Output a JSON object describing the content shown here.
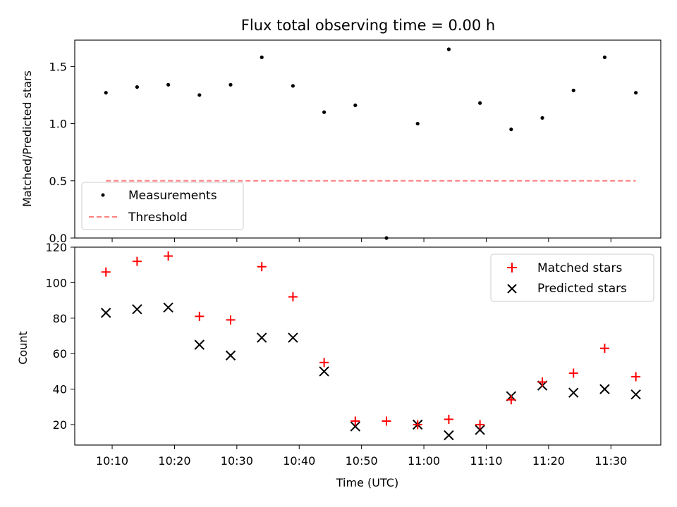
{
  "title": "Flux total observing time = 0.00 h",
  "chart_data": [
    {
      "type": "scatter",
      "ylabel": "Matched/Predicted stars",
      "ylim": [
        0,
        1.73
      ],
      "yticks": [
        0.0,
        0.5,
        1.0,
        1.5
      ],
      "ytick_labels": [
        "0.0",
        "0.5",
        "1.0",
        "1.5"
      ],
      "legend": {
        "position": "lower-left",
        "measurements_label": "Measurements",
        "threshold_label": "Threshold"
      },
      "series": [
        {
          "name": "Measurements",
          "marker": "dot",
          "color": "#000000",
          "x": [
            "10:09",
            "10:14",
            "10:19",
            "10:24",
            "10:29",
            "10:34",
            "10:39",
            "10:44",
            "10:49",
            "10:54",
            "10:59",
            "11:04",
            "11:09",
            "11:14",
            "11:19",
            "11:24",
            "11:29",
            "11:34"
          ],
          "y": [
            1.27,
            1.32,
            1.34,
            1.25,
            1.34,
            1.58,
            1.33,
            1.1,
            1.16,
            0.0,
            1.0,
            1.65,
            1.18,
            0.95,
            1.05,
            1.29,
            1.58,
            1.27
          ]
        }
      ],
      "threshold": {
        "name": "Threshold",
        "value": 0.5,
        "x_start": "10:09",
        "x_end": "11:34",
        "color": "#ff7f7f",
        "style": "dashed"
      }
    },
    {
      "type": "scatter",
      "xlabel": "Time (UTC)",
      "ylabel": "Count",
      "ylim": [
        8.5,
        120
      ],
      "yticks": [
        20,
        40,
        60,
        80,
        100,
        120
      ],
      "ytick_labels": [
        "20",
        "40",
        "60",
        "80",
        "100",
        "120"
      ],
      "xlim": [
        "10:04",
        "11:38"
      ],
      "xticks": [
        "10:10",
        "10:20",
        "10:30",
        "10:40",
        "10:50",
        "11:00",
        "11:10",
        "11:20",
        "11:30"
      ],
      "xtick_labels": [
        "10:10",
        "10:20",
        "10:30",
        "10:40",
        "10:50",
        "11:00",
        "11:10",
        "11:20",
        "11:30"
      ],
      "legend": {
        "position": "top-right"
      },
      "series": [
        {
          "name": "Matched stars",
          "marker": "plus",
          "color": "#ff0000",
          "x": [
            "10:09",
            "10:14",
            "10:19",
            "10:24",
            "10:29",
            "10:34",
            "10:39",
            "10:44",
            "10:49",
            "10:54",
            "10:59",
            "11:04",
            "11:09",
            "11:14",
            "11:19",
            "11:24",
            "11:29",
            "11:34"
          ],
          "y": [
            106,
            112,
            115,
            81,
            79,
            109,
            92,
            55,
            22,
            22,
            20,
            23,
            20,
            34,
            44,
            49,
            63,
            47
          ]
        },
        {
          "name": "Predicted stars",
          "marker": "x",
          "color": "#000000",
          "x": [
            "10:09",
            "10:14",
            "10:19",
            "10:24",
            "10:29",
            "10:34",
            "10:39",
            "10:44",
            "10:49",
            "10:54",
            "10:59",
            "11:04",
            "11:09",
            "11:14",
            "11:19",
            "11:24",
            "11:29",
            "11:34"
          ],
          "y": [
            83,
            85,
            86,
            65,
            59,
            69,
            69,
            50,
            19,
            null,
            20,
            14,
            17,
            36,
            42,
            38,
            40,
            37
          ]
        }
      ]
    }
  ]
}
